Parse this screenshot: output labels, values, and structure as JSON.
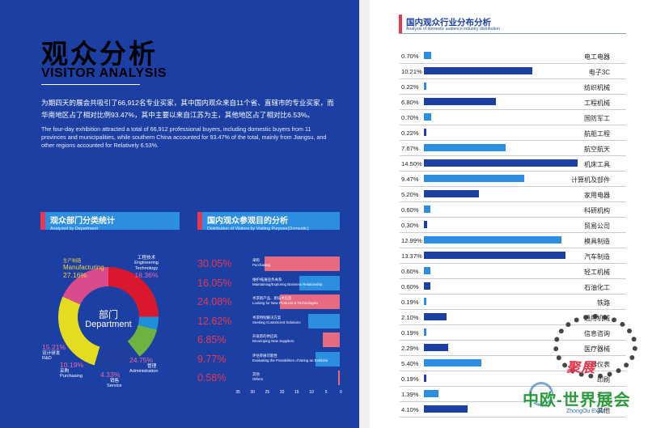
{
  "header": {
    "title_cn": "观众分析",
    "title_en": "VISITOR ANALYSIS"
  },
  "intro": {
    "cn": "为期四天的展会共吸引了66,912名专业买家，其中国内观众来自11个省、直辖市的专业买家，而华南地区占了相对比例93.47%，其中主要以来自江苏为主，其他地区占了相对比6.53%。",
    "en": "The four-day exhibition attracted a total of 66,912 professional buyers, including domestic buyers from 11 provinces and municipalities, while southern China accounted for 93.47% of the total, mainly from Jiangsu, and other regions accounted for Relatively 6.53%."
  },
  "department": {
    "heading_cn": "观众部门分类统计",
    "heading_en": "Analyzed by Department",
    "center_cn": "部门",
    "center_en": "Department",
    "segments": [
      {
        "name_cn": "管理",
        "name_en": "Administration",
        "pct": "24.75%",
        "value": 24.75,
        "color": "#d9182d"
      },
      {
        "name_cn": "销售",
        "name_en": "Service",
        "pct": "4.33%",
        "value": 4.33,
        "color": "#1e8fd8"
      },
      {
        "name_cn": "采购",
        "name_en": "Purchasing",
        "pct": "10.19%",
        "value": 10.19,
        "color": "#6db33f"
      },
      {
        "name_cn": "设计研发",
        "name_en": "R&D",
        "pct": "15.21%",
        "value": 15.21,
        "color": "#1e3f9e"
      },
      {
        "name_cn": "生产制造",
        "name_en": "Manufacturing",
        "pct": "27.16%",
        "value": 27.16,
        "color": "#e3dc20"
      },
      {
        "name_cn": "工程技术",
        "name_en": "Engineering Technology",
        "pct": "18.36%",
        "value": 18.36,
        "color": "#d94b8a"
      }
    ]
  },
  "purpose": {
    "heading_cn": "国内观众参观目的分析",
    "heading_en": "Distribution of Visitors by Visiting Purpose(Domestic)",
    "axis_ticks": [
      "35",
      "30",
      "25",
      "20",
      "15",
      "10",
      "5",
      "0"
    ],
    "items": [
      {
        "pct": "30.05%",
        "value": 30.05,
        "label_cn": "采购",
        "label_en": "Purchasing",
        "color": "#e86a80"
      },
      {
        "pct": "16.05%",
        "value": 16.05,
        "label_cn": "维护/拓展业务关系",
        "label_en": "Maintaining/Exploring Business Relationship",
        "color": "#2b8ee0"
      },
      {
        "pct": "24.08%",
        "value": 24.08,
        "label_cn": "寻求新产品、新技术信息",
        "label_en": "Looking for New Products & Technologies",
        "color": "#e86a80"
      },
      {
        "pct": "12.62%",
        "value": 12.62,
        "label_cn": "寻求特制解决方案",
        "label_en": "Seeking Customized Solutions",
        "color": "#2b8ee0"
      },
      {
        "pct": "6.85%",
        "value": 6.85,
        "label_cn": "开发新的供应商",
        "label_en": "Developing New Suppliers",
        "color": "#e86a80"
      },
      {
        "pct": "9.77%",
        "value": 9.77,
        "label_cn": "评估参展可能性",
        "label_en": "Evaluating the Possibilities of Being an Exhibitor",
        "color": "#2b8ee0"
      },
      {
        "pct": "0.58%",
        "value": 0.58,
        "label_cn": "其他",
        "label_en": "Others",
        "color": "#e86a80"
      }
    ]
  },
  "industry": {
    "heading_cn": "国内观众行业分布分析",
    "heading_en": "Analysis of domestic audience industry distribution",
    "items": [
      {
        "pct": "0.70%",
        "value": 0.7,
        "name": "电工电器",
        "color": "#2b8ee0"
      },
      {
        "pct": "10.21%",
        "value": 10.21,
        "name": "电子3C",
        "color": "#1c3fa4"
      },
      {
        "pct": "0.22%",
        "value": 0.22,
        "name": "纺织机械",
        "color": "#2b8ee0"
      },
      {
        "pct": "6.80%",
        "value": 6.8,
        "name": "工程机械",
        "color": "#1c3fa4"
      },
      {
        "pct": "0.70%",
        "value": 0.7,
        "name": "国防军工",
        "color": "#2b8ee0"
      },
      {
        "pct": "0.22%",
        "value": 0.22,
        "name": "航船工程",
        "color": "#1c3fa4"
      },
      {
        "pct": "7.67%",
        "value": 7.67,
        "name": "航空航天",
        "color": "#2b8ee0"
      },
      {
        "pct": "14.50%",
        "value": 14.5,
        "name": "机床工具",
        "color": "#1c3fa4"
      },
      {
        "pct": "9.47%",
        "value": 9.47,
        "name": "计算机及部件",
        "color": "#2b8ee0"
      },
      {
        "pct": "5.20%",
        "value": 5.2,
        "name": "家用电器",
        "color": "#1c3fa4"
      },
      {
        "pct": "0.60%",
        "value": 0.6,
        "name": "科研机构",
        "color": "#2b8ee0"
      },
      {
        "pct": "0.30%",
        "value": 0.3,
        "name": "贸易公司",
        "color": "#1c3fa4"
      },
      {
        "pct": "12.99%",
        "value": 12.99,
        "name": "模具制造",
        "color": "#2b8ee0"
      },
      {
        "pct": "13.37%",
        "value": 13.37,
        "name": "汽车制造",
        "color": "#1c3fa4"
      },
      {
        "pct": "0.60%",
        "value": 0.6,
        "name": "轻工机械",
        "color": "#2b8ee0"
      },
      {
        "pct": "0.60%",
        "value": 0.6,
        "name": "石油化工",
        "color": "#1c3fa4"
      },
      {
        "pct": "0.19%",
        "value": 0.19,
        "name": "铁路",
        "color": "#2b8ee0"
      },
      {
        "pct": "2.10%",
        "value": 2.1,
        "name": "通用机械",
        "color": "#1c3fa4"
      },
      {
        "pct": "0.19%",
        "value": 0.19,
        "name": "信息咨询",
        "color": "#2b8ee0"
      },
      {
        "pct": "2.29%",
        "value": 2.29,
        "name": "医疗器械",
        "color": "#1c3fa4"
      },
      {
        "pct": "5.40%",
        "value": 5.4,
        "name": "仪器仪表",
        "color": "#2b8ee0"
      },
      {
        "pct": "0.19%",
        "value": 0.19,
        "name": "印刷",
        "color": "#1c3fa4"
      },
      {
        "pct": "1.39%",
        "value": 1.39,
        "name": "造纸",
        "color": "#2b8ee0"
      },
      {
        "pct": "4.10%",
        "value": 4.1,
        "name": "其他",
        "color": "#1c3fa4"
      }
    ]
  },
  "watermark": {
    "red": "聚展",
    "green": "中欧-世界展会",
    "en": "ZhongOu Expo"
  }
}
